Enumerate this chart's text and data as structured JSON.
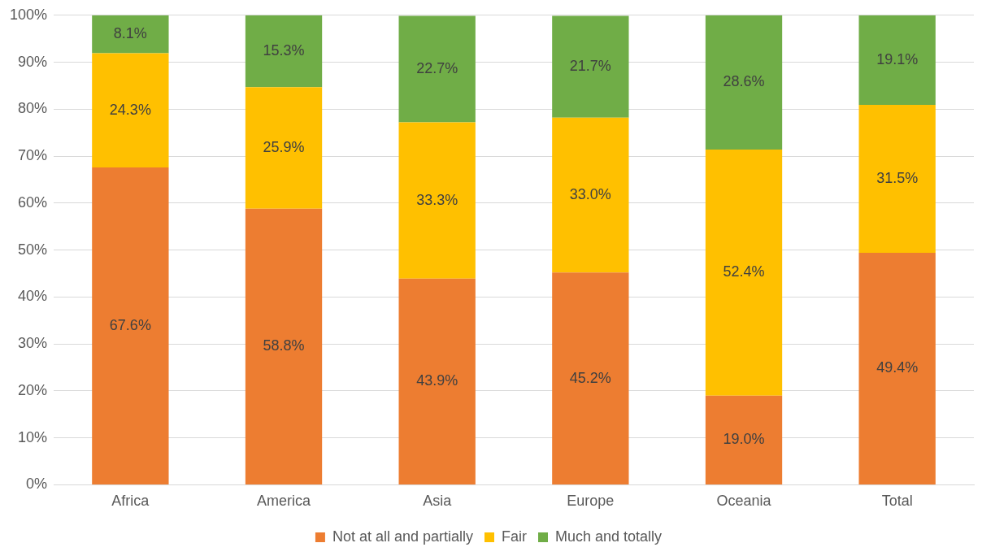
{
  "chart_data": {
    "type": "bar",
    "stacked": true,
    "categories": [
      "Africa",
      "America",
      "Asia",
      "Europe",
      "Oceania",
      "Total"
    ],
    "series": [
      {
        "name": "Not at all and partially",
        "color": "#ed7d31",
        "values": [
          67.6,
          58.8,
          43.9,
          45.2,
          19.0,
          49.4
        ],
        "value_labels": [
          "67.6%",
          "58.8%",
          "43.9%",
          "45.2%",
          "19.0%",
          "49.4%"
        ]
      },
      {
        "name": "Fair",
        "color": "#ffc000",
        "values": [
          24.3,
          25.9,
          33.3,
          33.0,
          52.4,
          31.5
        ],
        "value_labels": [
          "24.3%",
          "25.9%",
          "33.3%",
          "33.0%",
          "52.4%",
          "31.5%"
        ]
      },
      {
        "name": "Much and totally",
        "color": "#70ad47",
        "values": [
          8.1,
          15.3,
          22.7,
          21.7,
          28.6,
          19.1
        ],
        "value_labels": [
          "8.1%",
          "15.3%",
          "22.7%",
          "21.7%",
          "28.6%",
          "19.1%"
        ]
      }
    ],
    "ylim": [
      0,
      100
    ],
    "yticks": [
      {
        "value": 0,
        "label": "0%"
      },
      {
        "value": 10,
        "label": "10%"
      },
      {
        "value": 20,
        "label": "20%"
      },
      {
        "value": 30,
        "label": "30%"
      },
      {
        "value": 40,
        "label": "40%"
      },
      {
        "value": 50,
        "label": "50%"
      },
      {
        "value": 60,
        "label": "60%"
      },
      {
        "value": 70,
        "label": "70%"
      },
      {
        "value": 80,
        "label": "80%"
      },
      {
        "value": 90,
        "label": "90%"
      },
      {
        "value": 100,
        "label": "100%"
      }
    ],
    "grid": "y",
    "legend": "bottom"
  }
}
